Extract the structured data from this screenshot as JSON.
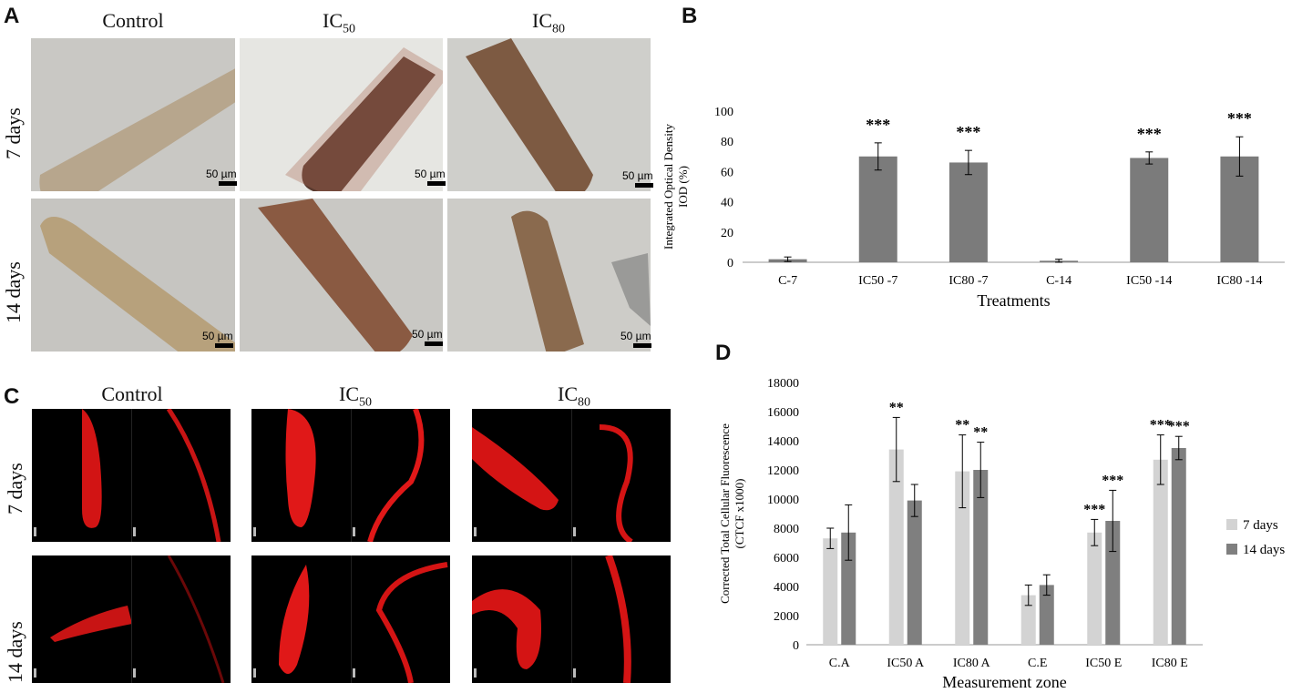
{
  "panelA": {
    "letter": "A",
    "columns": [
      {
        "label": "Control",
        "sub": ""
      },
      {
        "label": "IC",
        "sub": "50"
      },
      {
        "label": "IC",
        "sub": "80"
      }
    ],
    "rows": [
      "7 days",
      "14 days"
    ],
    "scale_bar": "50 µm"
  },
  "panelB": {
    "letter": "B",
    "colors": {
      "bar": "#7b7b7b"
    }
  },
  "panelC": {
    "letter": "C",
    "columns": [
      {
        "label": "Control",
        "sub": ""
      },
      {
        "label": "IC",
        "sub": "50"
      },
      {
        "label": "IC",
        "sub": "80"
      }
    ],
    "rows": [
      "7 days",
      "14 days"
    ]
  },
  "panelD": {
    "letter": "D",
    "colors": {
      "series1": "#d3d3d3",
      "series2": "#7f7f7f"
    }
  },
  "chart_data": [
    {
      "panel": "B",
      "type": "bar",
      "categories": [
        "C-7",
        "IC50 -7",
        "IC80 -7",
        "C-14",
        "IC50 -14",
        "IC80 -14"
      ],
      "values": [
        2,
        70,
        66,
        1,
        69,
        70
      ],
      "errors": [
        1.5,
        9,
        8,
        1,
        4,
        13
      ],
      "significance": [
        "",
        "***",
        "***",
        "",
        "***",
        "***"
      ],
      "xlabel": "Treatments",
      "ylabel": "Integrated Optical Density IOD (%)",
      "ylabel_lines": [
        "Integrated Optical Density",
        "IOD (%)"
      ],
      "ylim": [
        0,
        100
      ],
      "yticks": [
        0,
        20,
        40,
        60,
        80,
        100
      ],
      "grid": false
    },
    {
      "panel": "D",
      "type": "bar",
      "categories": [
        "C.A",
        "IC50  A",
        "IC80  A",
        "C.E",
        "IC50  E",
        "IC80  E"
      ],
      "series": [
        {
          "name": "7 days",
          "values": [
            7300,
            13400,
            11900,
            3400,
            7700,
            12700
          ],
          "errors": [
            700,
            2200,
            2500,
            700,
            900,
            1700
          ],
          "significance": [
            "",
            "**",
            "**",
            "",
            "***",
            "***"
          ]
        },
        {
          "name": "14 days",
          "values": [
            7700,
            9900,
            12000,
            4100,
            8500,
            13500
          ],
          "errors": [
            1900,
            1100,
            1900,
            700,
            2100,
            800
          ],
          "significance": [
            "",
            "",
            "**",
            "",
            "***",
            "***"
          ]
        }
      ],
      "xlabel": "Measurement zone",
      "ylabel": "Corrected Total Cellular Fluorescence (CTCF x1000)",
      "ylabel_lines": [
        "Corrected Total Cellular Fluorescence",
        "(CTCF x1000)"
      ],
      "ylim": [
        0,
        18000
      ],
      "yticks": [
        0,
        2000,
        4000,
        6000,
        8000,
        10000,
        12000,
        14000,
        16000,
        18000
      ],
      "legend_position": "right",
      "grid": false
    }
  ]
}
